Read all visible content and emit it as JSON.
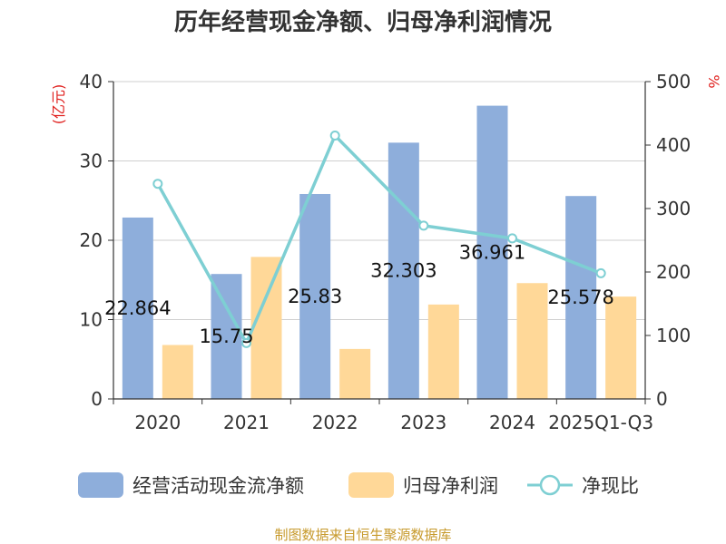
{
  "chart_data": {
    "type": "bar",
    "title": "历年经营现金净额、归母净利润情况",
    "categories": [
      "2020",
      "2021",
      "2022",
      "2023",
      "2024",
      "2025Q1-Q3"
    ],
    "series": [
      {
        "name": "经营活动现金流净额",
        "type": "bar",
        "axis": "left",
        "color": "#8eaedb",
        "values": [
          22.864,
          15.75,
          25.83,
          32.303,
          36.961,
          25.578
        ],
        "labels": [
          "22.864",
          "15.75",
          "25.83",
          "32.303",
          "36.961",
          "25.578"
        ]
      },
      {
        "name": "归母净利润",
        "type": "bar",
        "axis": "left",
        "color": "#ffd898",
        "values": [
          6.8,
          17.9,
          6.3,
          11.9,
          14.6,
          12.9
        ]
      },
      {
        "name": "净现比",
        "type": "line",
        "axis": "right",
        "color": "#7ecfd3",
        "values": [
          339,
          88,
          415,
          273,
          253,
          198
        ]
      }
    ],
    "y_left": {
      "unit": "(亿元)",
      "ylim": [
        0,
        40
      ],
      "ticks": [
        0,
        10,
        20,
        30,
        40
      ]
    },
    "y_right": {
      "unit": "%",
      "ylim": [
        0,
        500
      ],
      "ticks": [
        0,
        100,
        200,
        300,
        400,
        500
      ]
    },
    "grid": true,
    "legend": "bottom",
    "source": "制图数据来自恒生聚源数据库"
  }
}
